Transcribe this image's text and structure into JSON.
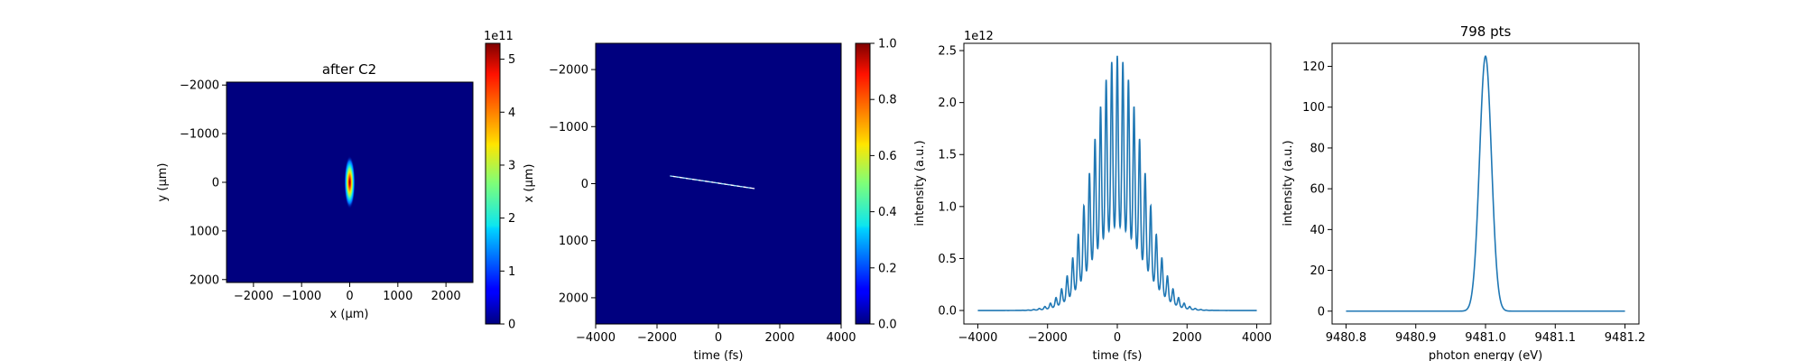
{
  "chart_data": [
    {
      "type": "heatmap",
      "title": "after C2",
      "xlabel": "x (μm)",
      "ylabel": "y (μm)",
      "xlim": [
        -2560,
        2560
      ],
      "ylim": [
        2060,
        -2060
      ],
      "xticks": [
        "−2000",
        "−1000",
        "0",
        "1000",
        "2000"
      ],
      "yticks": [
        "−2000",
        "−1000",
        "0",
        "1000",
        "2000"
      ],
      "xtick_values": [
        -2000,
        -1000,
        0,
        1000,
        2000
      ],
      "ytick_values": [
        -2000,
        -1000,
        0,
        1000,
        2000
      ],
      "colormap": "jet",
      "beam": {
        "center": [
          0,
          0
        ],
        "sigma_x": 70,
        "sigma_y": 340,
        "peak": 530000000000.0
      },
      "colorbar": {
        "range": [
          0,
          530000000000.0
        ],
        "ticks": [
          "0",
          "1",
          "2",
          "3",
          "4",
          "5"
        ],
        "tick_values": [
          0,
          1,
          2,
          3,
          4,
          5
        ],
        "offset_label": "1e11"
      }
    },
    {
      "type": "heatmap",
      "title": "",
      "xlabel": "time (fs)",
      "ylabel": "x (μm)",
      "xlim": [
        -4000,
        4000
      ],
      "ylim": [
        2460,
        -2460
      ],
      "xticks": [
        "−4000",
        "−2000",
        "0",
        "2000",
        "4000"
      ],
      "yticks": [
        "−2000",
        "−1000",
        "0",
        "1000",
        "2000"
      ],
      "xtick_values": [
        -4000,
        -2000,
        0,
        2000,
        4000
      ],
      "ytick_values": [
        -2000,
        -1000,
        0,
        1000,
        2000
      ],
      "colormap": "jet",
      "streak": {
        "t_start": -1500,
        "x_start": -130,
        "t_end": 1100,
        "x_end": 80
      },
      "colorbar": {
        "range": [
          0,
          1
        ],
        "ticks": [
          "0.0",
          "0.2",
          "0.4",
          "0.6",
          "0.8",
          "1.0"
        ],
        "tick_values": [
          0,
          0.2,
          0.4,
          0.6,
          0.8,
          1.0
        ]
      }
    },
    {
      "type": "line",
      "title": "",
      "xlabel": "time (fs)",
      "ylabel": "intensity (a.u.)",
      "xlim": [
        -4400,
        4400
      ],
      "ylim": [
        -130000000000.0,
        2570000000000.0
      ],
      "xticks": [
        "−4000",
        "−2000",
        "0",
        "2000",
        "4000"
      ],
      "yticks": [
        "0.0",
        "0.5",
        "1.0",
        "1.5",
        "2.0",
        "2.5"
      ],
      "xtick_values": [
        -4000,
        -2000,
        0,
        2000,
        4000
      ],
      "ytick_values": [
        0,
        500000000000.0,
        1000000000000.0,
        1500000000000.0,
        2000000000000.0,
        2500000000000.0
      ],
      "offset_label": "1e12",
      "color": "#1f77b4",
      "envelope": {
        "peak": 2450000000000.0,
        "sigma": 720
      },
      "oscillation_period": 160,
      "x_range": [
        -4000,
        4000
      ]
    },
    {
      "type": "line",
      "title": "798 pts",
      "xlabel": "photon energy (eV)",
      "ylabel": "intensity (a.u.)",
      "xlim": [
        9480.78,
        9481.22
      ],
      "ylim": [
        -6.3,
        131.3
      ],
      "xticks": [
        "9480.8",
        "9480.9",
        "9481.0",
        "9481.1",
        "9481.2"
      ],
      "yticks": [
        "0",
        "20",
        "40",
        "60",
        "80",
        "100",
        "120"
      ],
      "xtick_values": [
        9480.8,
        9480.9,
        9481.0,
        9481.1,
        9481.2
      ],
      "ytick_values": [
        0,
        20,
        40,
        60,
        80,
        100,
        120
      ],
      "color": "#1f77b4",
      "peak": {
        "center": 9481.0,
        "height": 125,
        "sigma": 0.0085
      },
      "x_range": [
        9480.8,
        9481.2
      ]
    }
  ]
}
